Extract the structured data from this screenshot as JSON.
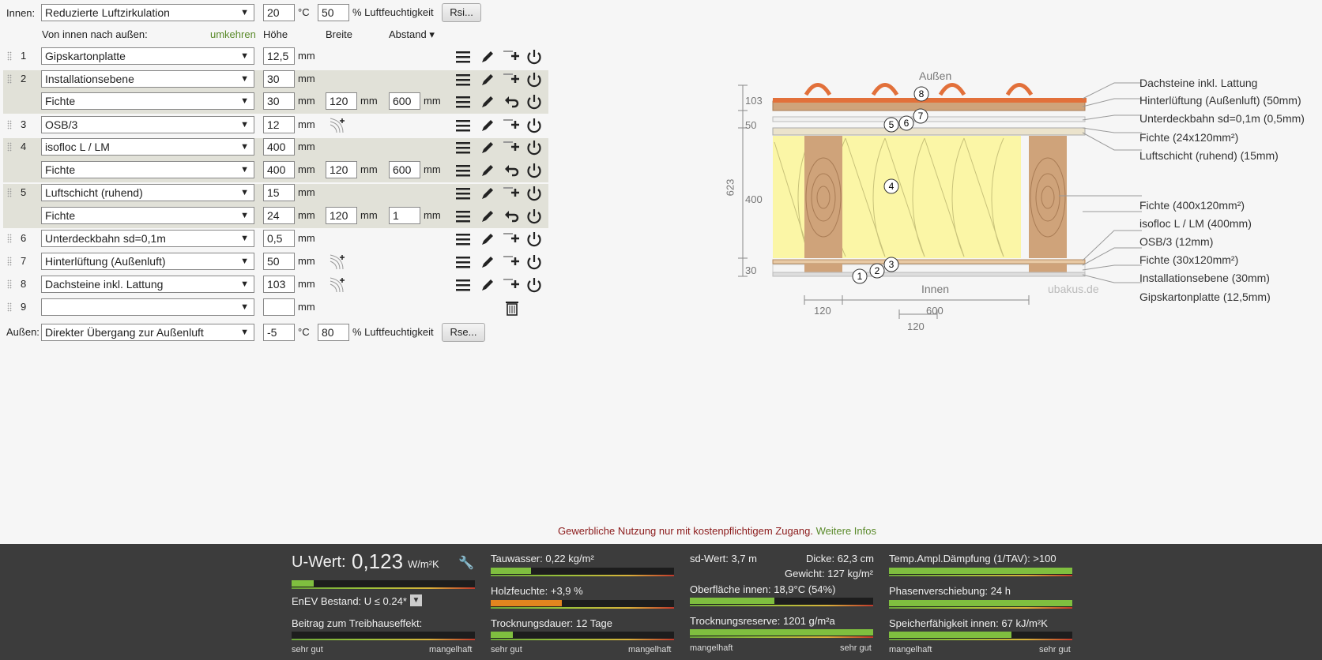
{
  "inside": {
    "label": "Innen:",
    "select": "Reduzierte Luftzirkulation",
    "temp": "20",
    "temp_unit": "°C",
    "humidity": "50",
    "humidity_unit": "% Luftfeuchtigkeit",
    "button": "Rsi..."
  },
  "outside": {
    "label": "Außen:",
    "select": "Direkter Übergang zur Außenluft",
    "temp": "-5",
    "temp_unit": "°C",
    "humidity": "80",
    "humidity_unit": "% Luftfeuchtigkeit",
    "button": "Rse..."
  },
  "header": {
    "direction": "Von innen nach außen:",
    "reverse": "umkehren",
    "height": "Höhe",
    "width": "Breite",
    "spacing": "Abstand ▾"
  },
  "unit": "mm",
  "layers": [
    {
      "num": "1",
      "material": "Gipskartonplatte",
      "height": "12,5"
    },
    {
      "num": "2",
      "material": "Installationsebene",
      "height": "30",
      "sub": {
        "material": "Fichte",
        "height": "30",
        "width": "120",
        "spacing": "600"
      }
    },
    {
      "num": "3",
      "material": "OSB/3",
      "height": "12"
    },
    {
      "num": "4",
      "material": "isofloc L / LM",
      "height": "400",
      "sub": {
        "material": "Fichte",
        "height": "400",
        "width": "120",
        "spacing": "600"
      }
    },
    {
      "num": "5",
      "material": "Luftschicht (ruhend)",
      "height": "15",
      "sub": {
        "material": "Fichte",
        "height": "24",
        "width": "120",
        "spacing": "1"
      }
    },
    {
      "num": "6",
      "material": "Unterdeckbahn sd=0,1m",
      "height": "0,5"
    },
    {
      "num": "7",
      "material": "Hinterlüftung (Außenluft)",
      "height": "50"
    },
    {
      "num": "8",
      "material": "Dachsteine inkl. Lattung",
      "height": "103"
    },
    {
      "num": "9",
      "material": "",
      "height": ""
    }
  ],
  "diagram": {
    "outside": "Außen",
    "inside": "Innen",
    "watermark": "ubakus.de",
    "dims_left": [
      "103",
      "50",
      "400",
      "30"
    ],
    "dim_total": "623",
    "dims_bottom": [
      "120",
      "600",
      "120"
    ],
    "labels": [
      "Dachsteine inkl. Lattung",
      "Hinterlüftung (Außenluft) (50mm)",
      "Unterdeckbahn sd=0,1m (0,5mm)",
      "Fichte (24x120mm²)",
      "Luftschicht (ruhend) (15mm)",
      "Fichte (400x120mm²)",
      "isofloc L / LM (400mm)",
      "OSB/3 (12mm)",
      "Fichte (30x120mm²)",
      "Installationsebene (30mm)",
      "Gipskartonplatte (12,5mm)"
    ],
    "markers": [
      "1",
      "2",
      "3",
      "4",
      "5",
      "6",
      "7",
      "8"
    ]
  },
  "notice": {
    "text": "Gewerbliche Nutzung nur mit kostenpflichtigem Zugang.",
    "link": "Weitere Infos"
  },
  "results": {
    "uvalue": {
      "label": "U-Wert:",
      "value": "0,123",
      "unit": "W/m²K",
      "fill": 0.12
    },
    "enev": "EnEV Bestand: U ≤ 0.24*",
    "greenhouse": {
      "label": "Beitrag zum Treibhauseffekt:",
      "fill": 0.0
    },
    "scale_good": "sehr gut",
    "scale_bad": "mangelhaft",
    "condensate": {
      "label": "Tauwasser: 0,22 kg/m²",
      "fill": 0.22
    },
    "wood": {
      "label": "Holzfeuchte: +3,9 %",
      "fill": 0.39
    },
    "drying": {
      "label": "Trocknungsdauer: 12 Tage",
      "fill": 0.12
    },
    "sd": "sd-Wert: 3,7 m",
    "thickness": "Dicke: 62,3 cm",
    "weight": "Gewicht: 127 kg/m²",
    "surface": {
      "label": "Oberfläche innen: 18,9°C (54%)",
      "fill": 0.46
    },
    "reserve": {
      "label": "Trocknungsreserve: 1201 g/m²a",
      "fill": 1.0
    },
    "tav": {
      "label": "Temp.Ampl.Dämpfung (1/TAV): >100",
      "fill": 1.0
    },
    "phase": {
      "label": "Phasenverschiebung: 24 h",
      "fill": 1.0
    },
    "storage": {
      "label": "Speicherfähigkeit innen: 67 kJ/m²K",
      "fill": 0.67
    },
    "scale_bad2": "mangelhaft",
    "scale_good2": "sehr gut"
  },
  "colors": {
    "accent_green": "#5a8a2a",
    "notice_red": "#8b1a1a",
    "bar_green": "#7fbf3f",
    "bar_orange": "#e2851e"
  }
}
